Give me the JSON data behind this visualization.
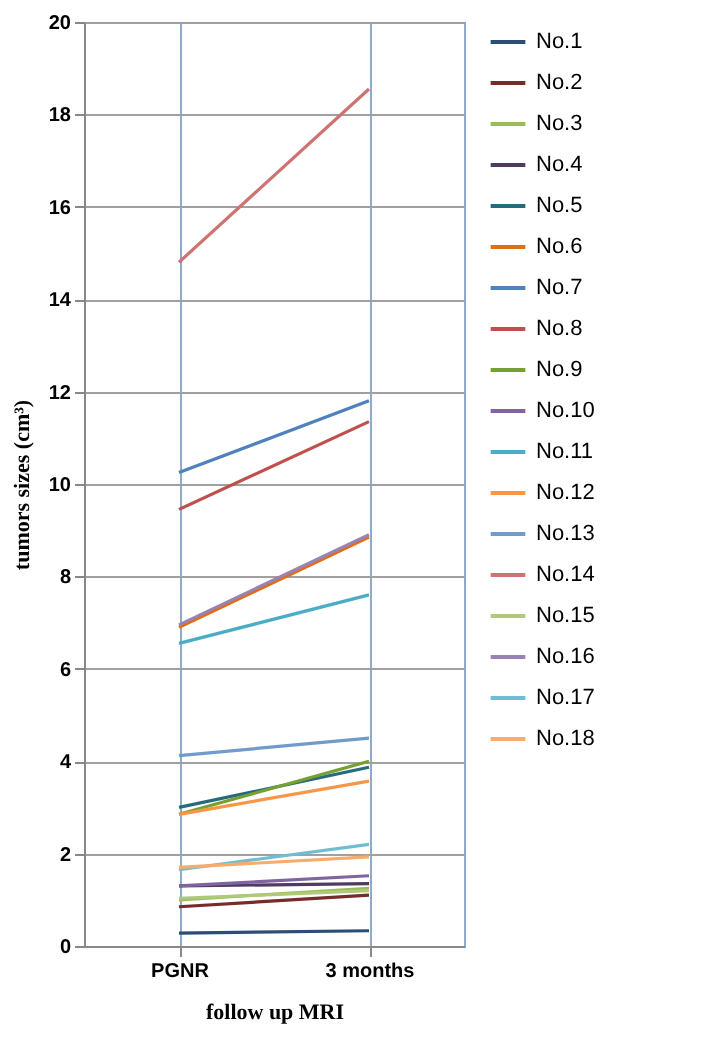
{
  "chart_data": {
    "type": "line",
    "xlabel": "follow up MRI",
    "ylabel": "tumors sizes (cm³)",
    "categories": [
      "PGNR",
      "3 months"
    ],
    "series": [
      {
        "name": "No.1",
        "color": "#2c4d75",
        "values": [
          0.28,
          0.33
        ]
      },
      {
        "name": "No.2",
        "color": "#772c2a",
        "values": [
          0.85,
          1.1
        ]
      },
      {
        "name": "No.3",
        "color": "#9bbb59",
        "values": [
          1.0,
          1.25
        ]
      },
      {
        "name": "No.4",
        "color": "#4d3b62",
        "values": [
          1.3,
          1.35
        ]
      },
      {
        "name": "No.5",
        "color": "#276a7c",
        "values": [
          3.0,
          3.87
        ]
      },
      {
        "name": "No.6",
        "color": "#e46c0a",
        "values": [
          6.9,
          8.85
        ]
      },
      {
        "name": "No.7",
        "color": "#4f81bd",
        "values": [
          10.25,
          11.8
        ]
      },
      {
        "name": "No.8",
        "color": "#c0504d",
        "values": [
          9.45,
          11.35
        ]
      },
      {
        "name": "No.9",
        "color": "#77a033",
        "values": [
          2.85,
          4.0
        ]
      },
      {
        "name": "No.10",
        "color": "#8064a2",
        "values": [
          1.3,
          1.52
        ]
      },
      {
        "name": "No.11",
        "color": "#4bacc6",
        "values": [
          6.55,
          7.6
        ]
      },
      {
        "name": "No.12",
        "color": "#f79646",
        "values": [
          2.85,
          3.57
        ]
      },
      {
        "name": "No.13",
        "color": "#729aca",
        "values": [
          4.12,
          4.5
        ]
      },
      {
        "name": "No.14",
        "color": "#cd7371",
        "values": [
          14.8,
          18.55
        ]
      },
      {
        "name": "No.15",
        "color": "#afc97a",
        "values": [
          1.03,
          1.2
        ]
      },
      {
        "name": "No.16",
        "color": "#9983b5",
        "values": [
          6.95,
          8.9
        ]
      },
      {
        "name": "No.17",
        "color": "#6fbdd1",
        "values": [
          1.65,
          2.2
        ]
      },
      {
        "name": "No.18",
        "color": "#f9ab6b",
        "values": [
          1.7,
          1.93
        ]
      }
    ],
    "ylim": [
      0,
      20
    ],
    "yticks": [
      0,
      2,
      4,
      6,
      8,
      10,
      12,
      14,
      16,
      18,
      20
    ],
    "grid": true,
    "legend": "right",
    "marker": "none",
    "line_style": "solid"
  }
}
